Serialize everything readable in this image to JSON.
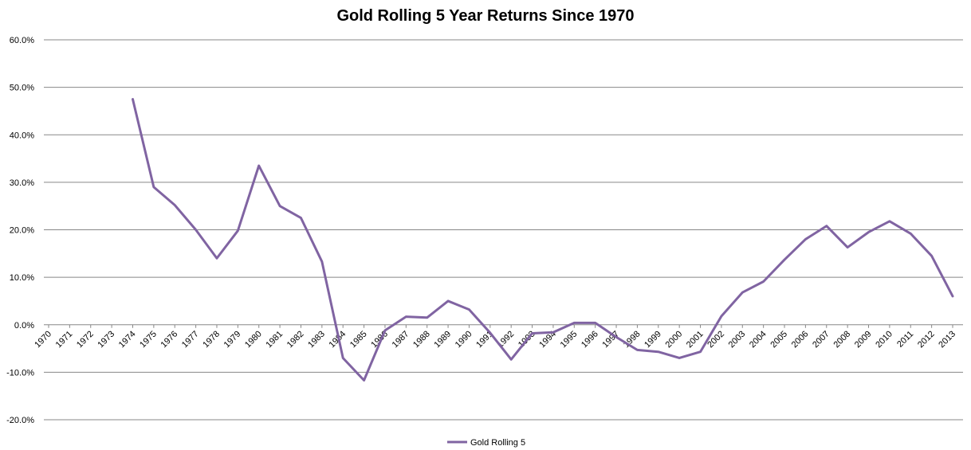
{
  "chart_data": {
    "type": "line",
    "title": "Gold Rolling 5 Year Returns Since 1970",
    "xlabel": "",
    "ylabel": "",
    "ylim": [
      -20,
      60
    ],
    "y_unit": "%",
    "yticks": [
      "60.0%",
      "50.0%",
      "40.0%",
      "30.0%",
      "20.0%",
      "10.0%",
      "0.0%",
      "-10.0%",
      "-20.0%"
    ],
    "ytick_values": [
      60,
      50,
      40,
      30,
      20,
      10,
      0,
      -10,
      -20
    ],
    "categories": [
      "1970",
      "1971",
      "1972",
      "1973",
      "1974",
      "1975",
      "1976",
      "1977",
      "1978",
      "1979",
      "1980",
      "1981",
      "1982",
      "1983",
      "1984",
      "1985",
      "1986",
      "1987",
      "1988",
      "1989",
      "1990",
      "1991",
      "1992",
      "1993",
      "1994",
      "1995",
      "1996",
      "1997",
      "1998",
      "1999",
      "2000",
      "2001",
      "2002",
      "2003",
      "2004",
      "2005",
      "2006",
      "2007",
      "2008",
      "2009",
      "2010",
      "2011",
      "2012",
      "2013"
    ],
    "grid": true,
    "legend_position": "bottom",
    "series": [
      {
        "name": "Gold Rolling 5",
        "color": "#8064a2",
        "values": [
          null,
          null,
          null,
          null,
          47.5,
          29.0,
          25.2,
          20.0,
          14.0,
          19.8,
          33.5,
          25.0,
          22.5,
          13.3,
          -7.0,
          -11.7,
          -1.2,
          1.7,
          1.5,
          5.0,
          3.2,
          -1.7,
          -7.3,
          -1.8,
          -1.6,
          0.4,
          0.4,
          -2.6,
          -5.3,
          -5.7,
          -7.0,
          -5.7,
          1.8,
          6.8,
          9.1,
          13.7,
          18.0,
          20.8,
          16.3,
          19.5,
          21.8,
          19.2,
          14.5,
          6.0
        ]
      }
    ]
  }
}
